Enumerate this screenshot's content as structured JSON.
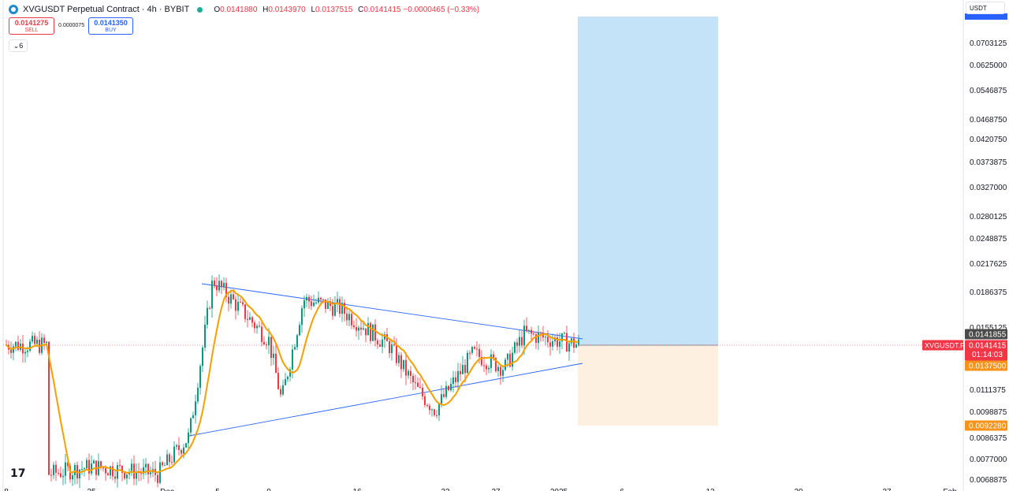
{
  "header": {
    "symbol_title": "XVGUSDT Perpetual Contract · 4h · BYBIT",
    "ohlc": [
      {
        "key": "O",
        "value": "0.0141880"
      },
      {
        "key": "H",
        "value": "0.0143970"
      },
      {
        "key": "L",
        "value": "0.0137515"
      },
      {
        "key": "C",
        "value": "0.0141415"
      }
    ],
    "change": "−0.0000465 (−0.33%)"
  },
  "trade": {
    "sell_price": "0.0141275",
    "sell_label": "SELL",
    "spread": "0.0000075",
    "buy_price": "0.0141350",
    "buy_label": "BUY"
  },
  "indicator_toggle": "6",
  "currency": "USDT",
  "logo": "TradingView",
  "chart_data": {
    "type": "candlestick",
    "timeframe": "4h",
    "price_axis_labels": [
      "0.0703125",
      "0.0625000",
      "0.0546875",
      "0.0468750",
      "0.0420750",
      "0.0373875",
      "0.0327000",
      "0.0280125",
      "0.0248875",
      "0.0217625",
      "0.0186375",
      "0.0155125",
      "0.0111375",
      "0.0098875",
      "0.0086375",
      "0.0077000",
      "0.0068875"
    ],
    "time_axis_labels": [
      "8",
      "25",
      "Dec",
      "5",
      "9",
      "16",
      "23",
      "27",
      "2025",
      "6",
      "13",
      "20",
      "27",
      "Feb"
    ],
    "price_markers": [
      {
        "label": "0.0141855",
        "color": "#4a4a4a"
      },
      {
        "label": "0.0141415",
        "color": "#f23645",
        "sub": "01:14:03",
        "tag": "XVGUSDT.P"
      },
      {
        "label": "0.0137500",
        "color": "#f7931a"
      },
      {
        "label": "0.0092280",
        "color": "#f7931a"
      }
    ],
    "position": {
      "entry": 0.0141415,
      "target_zone": "blue",
      "stop": 0.009228
    },
    "moving_average_color": "#f59f00",
    "candle_up_color": "#089981",
    "candle_down_color": "#f23645",
    "series_close_approx": [
      {
        "t": "Nov 22",
        "v": 0.0071
      },
      {
        "t": "Nov 25",
        "v": 0.0074
      },
      {
        "t": "Dec 1",
        "v": 0.0071
      },
      {
        "t": "Dec 2",
        "v": 0.0087
      },
      {
        "t": "Dec 4",
        "v": 0.02
      },
      {
        "t": "Dec 6",
        "v": 0.0175
      },
      {
        "t": "Dec 9",
        "v": 0.0145
      },
      {
        "t": "Dec 10",
        "v": 0.0105
      },
      {
        "t": "Dec 11",
        "v": 0.018
      },
      {
        "t": "Dec 14",
        "v": 0.0172
      },
      {
        "t": "Dec 18",
        "v": 0.014
      },
      {
        "t": "Dec 21",
        "v": 0.0112
      },
      {
        "t": "Dec 23",
        "v": 0.01
      },
      {
        "t": "Dec 25",
        "v": 0.0135
      },
      {
        "t": "Dec 27",
        "v": 0.0125
      },
      {
        "t": "Dec 29",
        "v": 0.015
      },
      {
        "t": "Jan 1",
        "v": 0.0141415
      }
    ]
  }
}
